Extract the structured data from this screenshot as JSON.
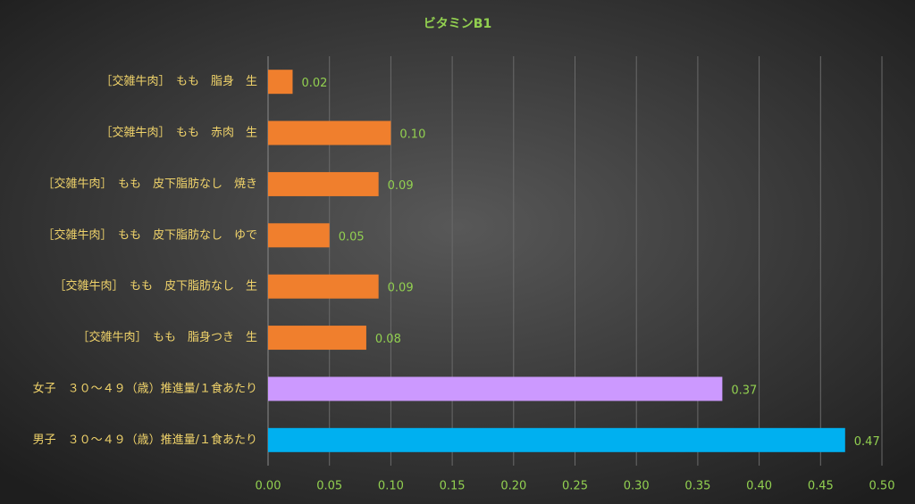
{
  "chart_data": {
    "type": "bar",
    "orientation": "horizontal",
    "title": "ビタミンB1",
    "categories": [
      "［交雑牛肉］　もも　脂身　生",
      "［交雑牛肉］　もも　赤肉　生",
      "［交雑牛肉］　もも　皮下脂肪なし　焼き",
      "［交雑牛肉］　もも　皮下脂肪なし　ゆで",
      "［交雑牛肉］　もも　皮下脂肪なし　生",
      "［交雑牛肉］　もも　脂身つき　生",
      "女子　３０～４９（歳）推進量/１食あたり",
      "男子　３０～４９（歳）推進量/１食あたり"
    ],
    "values": [
      0.02,
      0.1,
      0.09,
      0.05,
      0.09,
      0.08,
      0.37,
      0.47
    ],
    "value_labels": [
      "0.02",
      "0.10",
      "0.09",
      "0.05",
      "0.09",
      "0.08",
      "0.37",
      "0.47"
    ],
    "colors": [
      "#f07f2d",
      "#f07f2d",
      "#f07f2d",
      "#f07f2d",
      "#f07f2d",
      "#f07f2d",
      "#cc99ff",
      "#00b0f0"
    ],
    "xlim": [
      0,
      0.5
    ],
    "xticks": [
      {
        "value": 0,
        "label": "0.00"
      },
      0.05,
      {
        "value": 0.1,
        "label": "0.10"
      },
      0.15,
      {
        "value": 0.2,
        "label": "0.20"
      },
      0.25,
      {
        "value": 0.3,
        "label": "0.30"
      },
      0.35,
      {
        "value": 0.4,
        "label": "0.40"
      },
      0.45,
      {
        "value": 0.5,
        "label": "0.50"
      }
    ],
    "grid": true
  }
}
